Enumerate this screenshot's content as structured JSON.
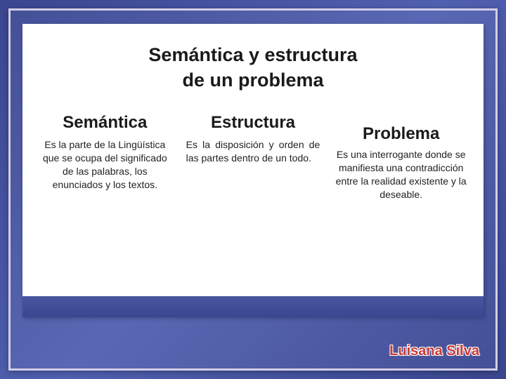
{
  "title": {
    "line1": "Semántica y estructura",
    "line2": "de un problema"
  },
  "columns": [
    {
      "heading": "Semántica",
      "body": "Es la parte de la Lingüística que se ocupa del significado de las palabras, los enunciados y los textos."
    },
    {
      "heading": "Estructura",
      "body": "Es la disposición y orden de las partes dentro de un todo."
    },
    {
      "heading": "Problema",
      "body": "Es una interrogante donde se manifiesta una contradicción entre la realidad existente y la deseable."
    }
  ],
  "author": "Luisana Silva",
  "colors": {
    "frame_border": "#d4cfe8",
    "bg_gradient_a": "#3a4690",
    "bg_gradient_b": "#5060b0",
    "panel_bg": "#ffffff",
    "title_color": "#1a1a1a",
    "body_color": "#222222",
    "author_color": "#c93a3a"
  }
}
